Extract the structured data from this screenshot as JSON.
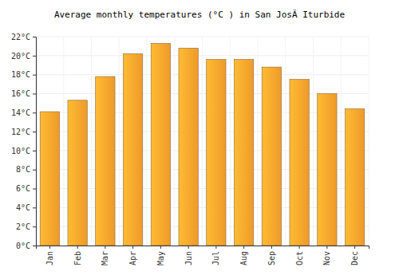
{
  "chart_data": {
    "type": "bar",
    "title": "Average monthly temperatures (°C ) in San JosÃ Iturbide",
    "categories": [
      "Jan",
      "Feb",
      "Mar",
      "Apr",
      "May",
      "Jun",
      "Jul",
      "Aug",
      "Sep",
      "Oct",
      "Nov",
      "Dec"
    ],
    "values": [
      14.1,
      15.3,
      17.8,
      20.2,
      21.3,
      20.8,
      19.6,
      19.6,
      18.8,
      17.5,
      16.0,
      14.4
    ],
    "color": "#fba22c",
    "ylim": [
      0,
      22
    ],
    "yticks": [
      {
        "value": 0,
        "label": "0°C"
      },
      {
        "value": 2,
        "label": "2°C"
      },
      {
        "value": 4,
        "label": "4°C"
      },
      {
        "value": 6,
        "label": "6°C"
      },
      {
        "value": 8,
        "label": "8°C"
      },
      {
        "value": 10,
        "label": "10°C"
      },
      {
        "value": 12,
        "label": "12°C"
      },
      {
        "value": 14,
        "label": "14°C"
      },
      {
        "value": 16,
        "label": "16°C"
      },
      {
        "value": 18,
        "label": "18°C"
      },
      {
        "value": 20,
        "label": "20°C"
      },
      {
        "value": 22,
        "label": "22°C"
      }
    ],
    "grid": true
  }
}
